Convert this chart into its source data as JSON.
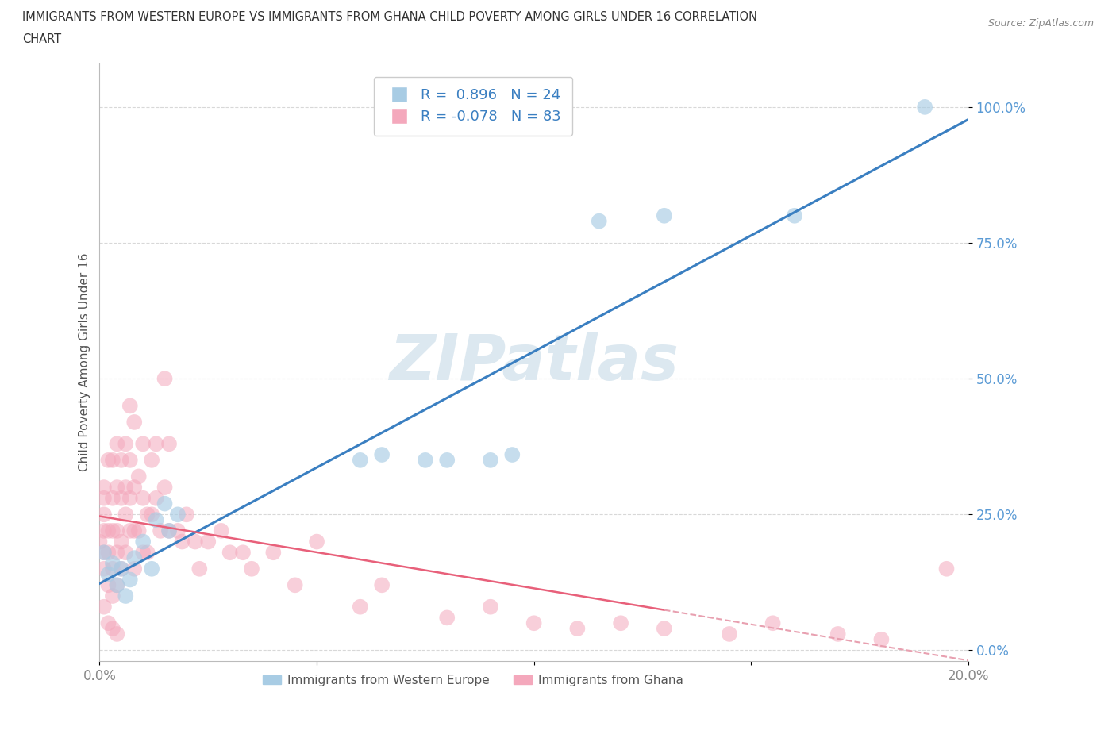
{
  "title_line1": "IMMIGRANTS FROM WESTERN EUROPE VS IMMIGRANTS FROM GHANA CHILD POVERTY AMONG GIRLS UNDER 16 CORRELATION",
  "title_line2": "CHART",
  "source_text": "Source: ZipAtlas.com",
  "ylabel": "Child Poverty Among Girls Under 16",
  "legend_label1": "Immigrants from Western Europe",
  "legend_label2": "Immigrants from Ghana",
  "r1": 0.896,
  "n1": 24,
  "r2": -0.078,
  "n2": 83,
  "color_blue": "#a8cce4",
  "color_pink": "#f4a8bc",
  "color_blue_line": "#3a7fc1",
  "color_pink_line": "#e8607a",
  "color_pink_line_dash": "#e8a0b0",
  "watermark_color": "#dce8f0",
  "background_color": "#ffffff",
  "grid_color": "#d8d8d8",
  "xlim": [
    0.0,
    0.2
  ],
  "ylim": [
    -0.02,
    1.08
  ],
  "ytick_vals": [
    0.0,
    0.25,
    0.5,
    0.75,
    1.0
  ],
  "ytick_labels": [
    "0.0%",
    "25.0%",
    "50.0%",
    "75.0%",
    "100.0%"
  ],
  "xtick_vals": [
    0.0,
    0.05,
    0.1,
    0.15,
    0.2
  ],
  "xtick_labels": [
    "0.0%",
    "",
    "",
    "",
    "20.0%"
  ],
  "blue_x": [
    0.001,
    0.002,
    0.003,
    0.004,
    0.005,
    0.006,
    0.007,
    0.008,
    0.01,
    0.012,
    0.013,
    0.015,
    0.016,
    0.018,
    0.06,
    0.065,
    0.075,
    0.08,
    0.09,
    0.095,
    0.115,
    0.13,
    0.16,
    0.19
  ],
  "blue_y": [
    0.18,
    0.14,
    0.16,
    0.12,
    0.15,
    0.1,
    0.13,
    0.17,
    0.2,
    0.15,
    0.24,
    0.27,
    0.22,
    0.25,
    0.35,
    0.36,
    0.35,
    0.35,
    0.35,
    0.36,
    0.79,
    0.8,
    0.8,
    1.0
  ],
  "pink_x": [
    0.0,
    0.001,
    0.001,
    0.001,
    0.001,
    0.001,
    0.001,
    0.002,
    0.002,
    0.002,
    0.002,
    0.003,
    0.003,
    0.003,
    0.003,
    0.003,
    0.004,
    0.004,
    0.004,
    0.004,
    0.004,
    0.005,
    0.005,
    0.005,
    0.005,
    0.006,
    0.006,
    0.006,
    0.006,
    0.007,
    0.007,
    0.007,
    0.007,
    0.008,
    0.008,
    0.008,
    0.008,
    0.009,
    0.009,
    0.01,
    0.01,
    0.01,
    0.011,
    0.011,
    0.012,
    0.012,
    0.013,
    0.013,
    0.014,
    0.015,
    0.015,
    0.016,
    0.016,
    0.018,
    0.019,
    0.02,
    0.022,
    0.023,
    0.025,
    0.028,
    0.03,
    0.033,
    0.035,
    0.04,
    0.045,
    0.05,
    0.06,
    0.065,
    0.08,
    0.09,
    0.1,
    0.11,
    0.12,
    0.13,
    0.145,
    0.155,
    0.17,
    0.18,
    0.195,
    0.001,
    0.002,
    0.003,
    0.004
  ],
  "pink_y": [
    0.2,
    0.22,
    0.28,
    0.18,
    0.25,
    0.3,
    0.15,
    0.22,
    0.35,
    0.18,
    0.12,
    0.28,
    0.35,
    0.22,
    0.15,
    0.1,
    0.3,
    0.22,
    0.18,
    0.38,
    0.12,
    0.28,
    0.35,
    0.2,
    0.15,
    0.38,
    0.25,
    0.18,
    0.3,
    0.45,
    0.28,
    0.22,
    0.35,
    0.42,
    0.3,
    0.22,
    0.15,
    0.32,
    0.22,
    0.38,
    0.28,
    0.18,
    0.25,
    0.18,
    0.35,
    0.25,
    0.38,
    0.28,
    0.22,
    0.5,
    0.3,
    0.38,
    0.22,
    0.22,
    0.2,
    0.25,
    0.2,
    0.15,
    0.2,
    0.22,
    0.18,
    0.18,
    0.15,
    0.18,
    0.12,
    0.2,
    0.08,
    0.12,
    0.06,
    0.08,
    0.05,
    0.04,
    0.05,
    0.04,
    0.03,
    0.05,
    0.03,
    0.02,
    0.15,
    0.08,
    0.05,
    0.04,
    0.03
  ]
}
